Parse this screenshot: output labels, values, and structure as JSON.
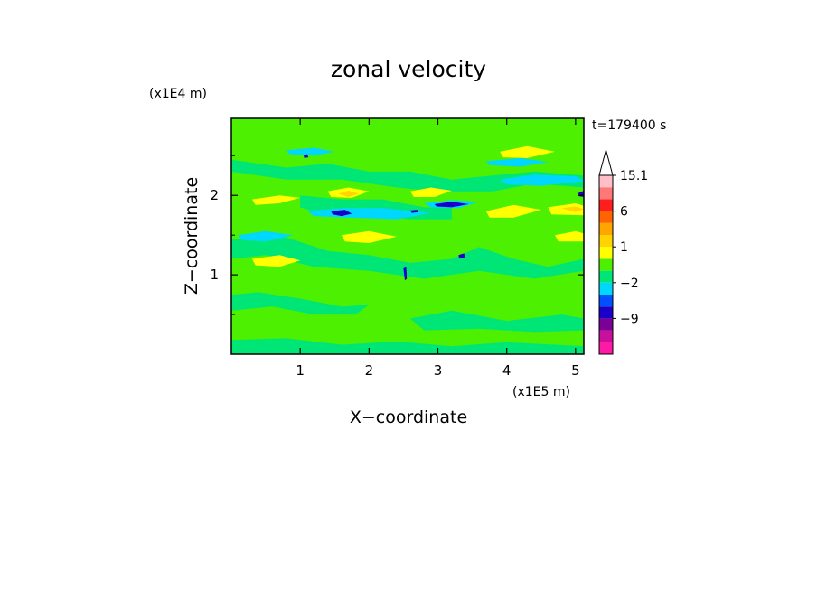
{
  "chart_data": {
    "type": "heatmap",
    "title": "zonal velocity",
    "xlabel": "X−coordinate",
    "ylabel": "Z−coordinate",
    "x_unit_label": "(x1E5 m)",
    "y_unit_label": "(x1E4 m)",
    "time_label": "t=179400 s",
    "xlim": [
      0,
      5.12
    ],
    "ylim": [
      0,
      2.97
    ],
    "x_ticks": [
      1,
      2,
      3,
      4,
      5
    ],
    "x_tick_labels": [
      "1",
      "2",
      "3",
      "4",
      "5"
    ],
    "y_ticks": [
      1,
      2
    ],
    "y_tick_labels": [
      "1",
      "2"
    ],
    "y_minor_ticks": [
      0.5,
      1.5,
      2.5
    ],
    "colorbar": {
      "levels": [
        -15,
        -12,
        -9,
        -6,
        -3.5,
        -2,
        -1,
        0,
        1,
        2,
        3,
        6,
        9,
        12,
        15.1
      ],
      "colors": [
        "#ff1aa5",
        "#c8109d",
        "#7a0096",
        "#1a00c8",
        "#0050ff",
        "#00d7ff",
        "#00e676",
        "#4cf000",
        "#ffff00",
        "#ffd400",
        "#ffa500",
        "#ff6400",
        "#ff1e1e",
        "#ff7878",
        "#ffbec8"
      ],
      "labels": [
        {
          "value": 15.1,
          "text": "15.1"
        },
        {
          "value": 6,
          "text": "6"
        },
        {
          "value": 1,
          "text": "1"
        },
        {
          "value": -2,
          "text": "−2"
        },
        {
          "value": -9,
          "text": "−9"
        }
      ],
      "extend": "max"
    },
    "background_level": "#4cf000",
    "regions": [
      {
        "value": 0.5,
        "polygon": [
          [
            0,
            1.9
          ],
          [
            0.5,
            1.9
          ],
          [
            1.0,
            1.85
          ],
          [
            1.3,
            1.8
          ],
          [
            1.6,
            1.9
          ],
          [
            2.4,
            1.6
          ],
          [
            3.0,
            1.5
          ],
          [
            3.6,
            1.6
          ],
          [
            4.0,
            1.35
          ],
          [
            4.4,
            1.35
          ],
          [
            5.12,
            1.5
          ],
          [
            5.12,
            0
          ],
          [
            0,
            0
          ]
        ]
      },
      {
        "value": 0.5,
        "polygon": [
          [
            0,
            2.55
          ],
          [
            0.5,
            2.6
          ],
          [
            1.0,
            2.55
          ],
          [
            1.6,
            2.5
          ],
          [
            2.0,
            2.6
          ],
          [
            2.5,
            2.45
          ],
          [
            3.0,
            2.5
          ],
          [
            3.5,
            2.35
          ],
          [
            4.0,
            2.4
          ],
          [
            4.5,
            2.5
          ],
          [
            5.12,
            2.6
          ],
          [
            5.12,
            2.85
          ],
          [
            4.0,
            2.75
          ],
          [
            3.0,
            2.8
          ],
          [
            2.0,
            2.9
          ],
          [
            1.0,
            2.85
          ],
          [
            0,
            2.8
          ]
        ]
      },
      {
        "value": -0.5,
        "polygon": [
          [
            0,
            1.45
          ],
          [
            0.7,
            1.5
          ],
          [
            1.4,
            1.3
          ],
          [
            2.0,
            1.25
          ],
          [
            2.6,
            1.15
          ],
          [
            3.2,
            1.2
          ],
          [
            3.6,
            1.35
          ],
          [
            4.1,
            1.2
          ],
          [
            4.6,
            1.1
          ],
          [
            5.12,
            1.2
          ],
          [
            5.12,
            1.05
          ],
          [
            4.4,
            0.95
          ],
          [
            3.6,
            1.05
          ],
          [
            2.8,
            0.95
          ],
          [
            2.0,
            1.05
          ],
          [
            1.2,
            1.1
          ],
          [
            0.5,
            1.25
          ],
          [
            0,
            1.2
          ]
        ]
      },
      {
        "value": -0.5,
        "polygon": [
          [
            0,
            0.75
          ],
          [
            0.4,
            0.78
          ],
          [
            1.0,
            0.7
          ],
          [
            1.6,
            0.6
          ],
          [
            2.0,
            0.62
          ],
          [
            1.8,
            0.5
          ],
          [
            1.2,
            0.5
          ],
          [
            0.6,
            0.6
          ],
          [
            0,
            0.55
          ]
        ]
      },
      {
        "value": -0.5,
        "polygon": [
          [
            2.6,
            0.45
          ],
          [
            3.2,
            0.55
          ],
          [
            4.0,
            0.42
          ],
          [
            4.8,
            0.5
          ],
          [
            5.12,
            0.45
          ],
          [
            5.12,
            0.3
          ],
          [
            4.4,
            0.28
          ],
          [
            3.6,
            0.32
          ],
          [
            2.8,
            0.3
          ]
        ]
      },
      {
        "value": -0.5,
        "polygon": [
          [
            0,
            0.18
          ],
          [
            0.8,
            0.2
          ],
          [
            1.6,
            0.12
          ],
          [
            2.4,
            0.16
          ],
          [
            3.2,
            0.1
          ],
          [
            4.0,
            0.15
          ],
          [
            5.12,
            0.1
          ],
          [
            5.12,
            0
          ],
          [
            0,
            0
          ]
        ]
      },
      {
        "value": -0.5,
        "polygon": [
          [
            0,
            2.45
          ],
          [
            0.8,
            2.35
          ],
          [
            1.4,
            2.4
          ],
          [
            2.0,
            2.3
          ],
          [
            2.6,
            2.3
          ],
          [
            3.2,
            2.2
          ],
          [
            3.8,
            2.25
          ],
          [
            4.4,
            2.3
          ],
          [
            5.12,
            2.25
          ],
          [
            5.12,
            2.1
          ],
          [
            4.4,
            2.15
          ],
          [
            3.8,
            2.05
          ],
          [
            3.0,
            2.05
          ],
          [
            2.4,
            2.1
          ],
          [
            1.6,
            2.2
          ],
          [
            0.8,
            2.2
          ],
          [
            0,
            2.3
          ]
        ]
      },
      {
        "value": -0.5,
        "polygon": [
          [
            1.0,
            2.0
          ],
          [
            1.6,
            1.95
          ],
          [
            2.2,
            1.95
          ],
          [
            2.8,
            1.85
          ],
          [
            3.2,
            1.85
          ],
          [
            3.2,
            1.7
          ],
          [
            2.6,
            1.7
          ],
          [
            2.0,
            1.75
          ],
          [
            1.4,
            1.75
          ],
          [
            1.0,
            1.85
          ]
        ]
      },
      {
        "value": 1.5,
        "polygon": [
          [
            0.3,
            1.95
          ],
          [
            0.7,
            2.0
          ],
          [
            1.0,
            1.97
          ],
          [
            0.7,
            1.9
          ],
          [
            0.35,
            1.88
          ]
        ]
      },
      {
        "value": 1.5,
        "polygon": [
          [
            1.4,
            2.05
          ],
          [
            1.7,
            2.1
          ],
          [
            2.0,
            2.05
          ],
          [
            1.75,
            1.97
          ],
          [
            1.45,
            1.98
          ]
        ]
      },
      {
        "value": 1.5,
        "polygon": [
          [
            2.6,
            2.05
          ],
          [
            2.9,
            2.1
          ],
          [
            3.2,
            2.06
          ],
          [
            2.95,
            1.98
          ],
          [
            2.65,
            1.98
          ]
        ]
      },
      {
        "value": 1.5,
        "polygon": [
          [
            3.7,
            1.8
          ],
          [
            4.1,
            1.88
          ],
          [
            4.5,
            1.82
          ],
          [
            4.1,
            1.72
          ],
          [
            3.75,
            1.72
          ]
        ]
      },
      {
        "value": 1.5,
        "polygon": [
          [
            0.3,
            1.2
          ],
          [
            0.7,
            1.25
          ],
          [
            1.0,
            1.18
          ],
          [
            0.7,
            1.1
          ],
          [
            0.35,
            1.12
          ]
        ]
      },
      {
        "value": 1.5,
        "polygon": [
          [
            1.6,
            1.5
          ],
          [
            2.0,
            1.55
          ],
          [
            2.4,
            1.48
          ],
          [
            2.0,
            1.4
          ],
          [
            1.65,
            1.42
          ]
        ]
      },
      {
        "value": 1.5,
        "polygon": [
          [
            3.9,
            2.55
          ],
          [
            4.3,
            2.62
          ],
          [
            4.7,
            2.55
          ],
          [
            4.3,
            2.47
          ],
          [
            3.95,
            2.48
          ]
        ]
      },
      {
        "value": 1.5,
        "polygon": [
          [
            4.7,
            1.5
          ],
          [
            5.0,
            1.55
          ],
          [
            5.12,
            1.52
          ],
          [
            5.12,
            1.42
          ],
          [
            4.75,
            1.42
          ]
        ]
      },
      {
        "value": 1.5,
        "polygon": [
          [
            4.6,
            1.85
          ],
          [
            5.0,
            1.9
          ],
          [
            5.12,
            1.87
          ],
          [
            5.12,
            1.75
          ],
          [
            4.65,
            1.76
          ]
        ]
      },
      {
        "value": 2.5,
        "polygon": [
          [
            1.55,
            2.02
          ],
          [
            1.7,
            2.06
          ],
          [
            1.85,
            2.02
          ],
          [
            1.7,
            1.98
          ]
        ]
      },
      {
        "value": 2.5,
        "polygon": [
          [
            4.8,
            1.84
          ],
          [
            5.0,
            1.86
          ],
          [
            5.12,
            1.83
          ],
          [
            5.0,
            1.79
          ]
        ]
      },
      {
        "value": -1.5,
        "polygon": [
          [
            0.8,
            2.57
          ],
          [
            1.2,
            2.6
          ],
          [
            1.5,
            2.55
          ],
          [
            1.2,
            2.5
          ],
          [
            0.85,
            2.52
          ]
        ]
      },
      {
        "value": -1.5,
        "polygon": [
          [
            1.1,
            1.8
          ],
          [
            1.6,
            1.84
          ],
          [
            2.2,
            1.84
          ],
          [
            2.9,
            1.78
          ],
          [
            2.4,
            1.7
          ],
          [
            1.7,
            1.72
          ],
          [
            1.2,
            1.74
          ]
        ]
      },
      {
        "value": -1.5,
        "polygon": [
          [
            2.8,
            1.9
          ],
          [
            3.2,
            1.94
          ],
          [
            3.6,
            1.92
          ],
          [
            3.3,
            1.84
          ],
          [
            2.9,
            1.85
          ]
        ]
      },
      {
        "value": -1.5,
        "polygon": [
          [
            3.9,
            2.2
          ],
          [
            4.4,
            2.26
          ],
          [
            5.0,
            2.24
          ],
          [
            5.12,
            2.18
          ],
          [
            4.5,
            2.12
          ],
          [
            4.0,
            2.14
          ]
        ]
      },
      {
        "value": -1.5,
        "polygon": [
          [
            0.1,
            1.5
          ],
          [
            0.5,
            1.55
          ],
          [
            0.9,
            1.5
          ],
          [
            0.5,
            1.42
          ],
          [
            0.15,
            1.44
          ]
        ]
      },
      {
        "value": -1.5,
        "polygon": [
          [
            3.7,
            2.43
          ],
          [
            4.2,
            2.47
          ],
          [
            4.6,
            2.42
          ],
          [
            4.2,
            2.36
          ],
          [
            3.75,
            2.38
          ]
        ]
      },
      {
        "value": -4.5,
        "polygon": [
          [
            1.45,
            1.8
          ],
          [
            1.65,
            1.82
          ],
          [
            1.75,
            1.77
          ],
          [
            1.6,
            1.74
          ],
          [
            1.47,
            1.76
          ]
        ]
      },
      {
        "value": -4.5,
        "polygon": [
          [
            2.95,
            1.89
          ],
          [
            3.2,
            1.92
          ],
          [
            3.45,
            1.89
          ],
          [
            3.2,
            1.85
          ],
          [
            2.98,
            1.86
          ]
        ]
      },
      {
        "value": -4.5,
        "polygon": [
          [
            2.6,
            1.81
          ],
          [
            2.7,
            1.82
          ],
          [
            2.72,
            1.79
          ],
          [
            2.62,
            1.78
          ]
        ]
      },
      {
        "value": -4.5,
        "polygon": [
          [
            1.05,
            2.5
          ],
          [
            1.1,
            2.52
          ],
          [
            1.12,
            2.48
          ],
          [
            1.06,
            2.47
          ]
        ]
      },
      {
        "value": -4.5,
        "polygon": [
          [
            5.04,
            2.03
          ],
          [
            5.12,
            2.06
          ],
          [
            5.12,
            1.98
          ],
          [
            5.05,
            1.99
          ]
        ]
      },
      {
        "value": -4.5,
        "polygon": [
          [
            2.5,
            1.08
          ],
          [
            2.54,
            1.1
          ],
          [
            2.55,
            0.95
          ],
          [
            2.52,
            0.93
          ]
        ]
      },
      {
        "value": -4.5,
        "polygon": [
          [
            3.3,
            1.25
          ],
          [
            3.38,
            1.27
          ],
          [
            3.4,
            1.22
          ],
          [
            3.31,
            1.21
          ]
        ]
      }
    ]
  }
}
